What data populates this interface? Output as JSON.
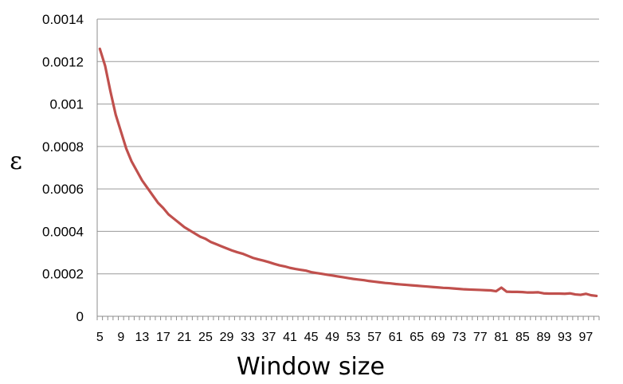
{
  "chart_data": {
    "type": "line",
    "title": "",
    "xlabel": "Window size",
    "ylabel": "ε",
    "ylim": [
      0,
      0.0014
    ],
    "yticks": [
      0,
      0.0002,
      0.0004,
      0.0006,
      0.0008,
      0.001,
      0.0012,
      0.0014
    ],
    "ytick_labels": [
      "0",
      "0.0002",
      "0.0004",
      "0.0006",
      "0.0008",
      "0.001",
      "0.0012",
      "0.0014"
    ],
    "xlim": [
      5,
      99
    ],
    "xtick_labels": [
      "5",
      "9",
      "13",
      "17",
      "21",
      "25",
      "29",
      "33",
      "37",
      "41",
      "45",
      "49",
      "53",
      "57",
      "61",
      "65",
      "69",
      "73",
      "77",
      "81",
      "85",
      "89",
      "93",
      "97"
    ],
    "grid": "horizontal",
    "legend": "none",
    "series": [
      {
        "color": "#c0504d",
        "x": [
          5,
          6,
          7,
          8,
          9,
          10,
          11,
          12,
          13,
          14,
          15,
          16,
          17,
          18,
          19,
          20,
          21,
          22,
          23,
          24,
          25,
          26,
          27,
          28,
          29,
          30,
          31,
          32,
          33,
          34,
          35,
          36,
          37,
          38,
          39,
          40,
          41,
          42,
          43,
          44,
          45,
          46,
          47,
          48,
          49,
          50,
          51,
          52,
          53,
          54,
          55,
          56,
          57,
          58,
          59,
          60,
          61,
          62,
          63,
          64,
          65,
          66,
          67,
          68,
          69,
          70,
          71,
          72,
          73,
          74,
          75,
          76,
          77,
          78,
          79,
          80,
          81,
          82,
          83,
          84,
          85,
          86,
          87,
          88,
          89,
          90,
          91,
          92,
          93,
          94,
          95,
          96,
          97,
          98,
          99
        ],
        "y": [
          0.00126,
          0.00118,
          0.00106,
          0.00095,
          0.00087,
          0.00079,
          0.00073,
          0.000685,
          0.00064,
          0.000605,
          0.00057,
          0.000535,
          0.00051,
          0.00048,
          0.00046,
          0.00044,
          0.00042,
          0.000405,
          0.00039,
          0.000375,
          0.000365,
          0.00035,
          0.00034,
          0.00033,
          0.00032,
          0.00031,
          0.000302,
          0.000295,
          0.000285,
          0.000275,
          0.000268,
          0.000262,
          0.000255,
          0.000247,
          0.00024,
          0.000235,
          0.000228,
          0.000223,
          0.000219,
          0.000215,
          0.000208,
          0.000204,
          0.0002,
          0.000196,
          0.000192,
          0.000188,
          0.000184,
          0.00018,
          0.000176,
          0.000173,
          0.00017,
          0.000166,
          0.000163,
          0.00016,
          0.000157,
          0.000155,
          0.000152,
          0.00015,
          0.000148,
          0.000146,
          0.000144,
          0.000142,
          0.00014,
          0.000138,
          0.000136,
          0.000134,
          0.000133,
          0.000131,
          0.000129,
          0.000127,
          0.000126,
          0.000125,
          0.000124,
          0.000123,
          0.000122,
          0.000118,
          0.000135,
          0.000116,
          0.000115,
          0.000115,
          0.000114,
          0.000112,
          0.000112,
          0.000113,
          0.000108,
          0.000107,
          0.000107,
          0.000107,
          0.000106,
          0.000108,
          0.000103,
          0.000101,
          0.000106,
          9.9e-05,
          9.6e-05
        ]
      }
    ]
  }
}
